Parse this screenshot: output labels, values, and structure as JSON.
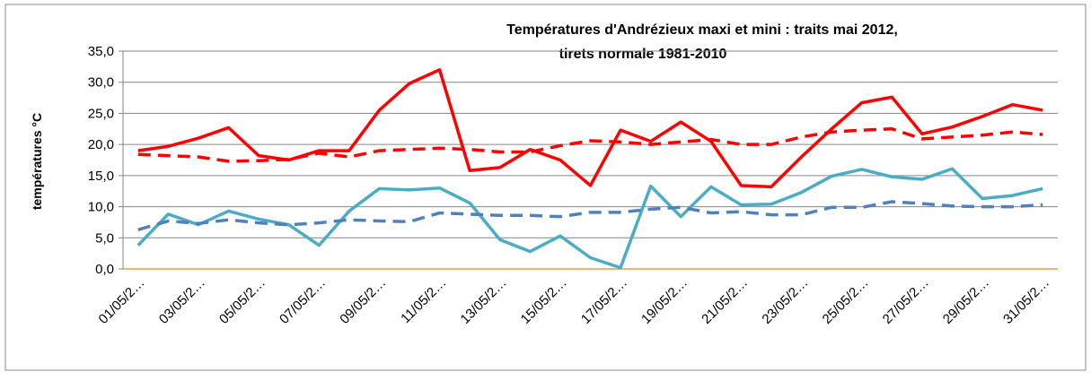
{
  "chart_data": {
    "type": "line",
    "title": [
      "Températures d'Andrézieux  maxi et mini : traits mai 2012,",
      "tirets normale 1981-2010"
    ],
    "y_label": "températures °C",
    "categories": [
      "01/05/2…",
      null,
      "03/05/2…",
      null,
      "05/05/2…",
      null,
      "07/05/2…",
      null,
      "09/05/2…",
      null,
      "11/05/2…",
      null,
      "13/05/2…",
      null,
      "15/05/2…",
      null,
      "17/05/2…",
      null,
      "19/05/2…",
      null,
      "21/05/2…",
      null,
      "23/05/2…",
      null,
      "25/05/2…",
      null,
      "27/05/2…",
      null,
      "29/05/2…",
      null,
      "31/05/2…"
    ],
    "series": [
      {
        "color": "#ff0000",
        "dashed": false,
        "values": [
          19.0,
          19.7,
          21.0,
          22.7,
          18.2,
          17.5,
          19.0,
          19.0,
          25.5,
          29.8,
          32.0,
          15.8,
          16.3,
          19.2,
          17.5,
          13.4,
          22.3,
          20.5,
          23.6,
          20.5,
          13.4,
          13.2,
          18.0,
          22.5,
          26.7,
          27.6,
          21.7,
          22.8,
          24.5,
          26.4,
          25.5
        ]
      },
      {
        "color": "#ff0000",
        "dashed": true,
        "values": [
          18.4,
          18.2,
          18.0,
          17.3,
          17.4,
          17.6,
          18.6,
          18.0,
          19.0,
          19.2,
          19.4,
          19.2,
          18.8,
          18.8,
          19.8,
          20.6,
          20.4,
          20.0,
          20.4,
          20.8,
          20.0,
          20.0,
          21.2,
          22.0,
          22.3,
          22.5,
          20.9,
          21.2,
          21.5,
          22.0,
          21.6
        ]
      },
      {
        "color": "#4bacc6",
        "dashed": false,
        "values": [
          3.8,
          8.8,
          7.1,
          9.3,
          8.0,
          7.1,
          3.8,
          9.3,
          12.9,
          12.7,
          13.0,
          10.6,
          4.7,
          2.8,
          5.3,
          1.8,
          0.2,
          13.3,
          8.4,
          13.2,
          10.3,
          10.4,
          12.3,
          14.9,
          16.0,
          14.8,
          14.4,
          16.1,
          11.3,
          11.8,
          12.9
        ]
      },
      {
        "color": "#4f81bd",
        "dashed": true,
        "values": [
          6.3,
          7.7,
          7.3,
          7.9,
          7.4,
          7.1,
          7.4,
          7.9,
          7.7,
          7.6,
          9.0,
          8.8,
          8.6,
          8.6,
          8.4,
          9.1,
          9.1,
          9.6,
          9.9,
          9.0,
          9.2,
          8.7,
          8.7,
          9.9,
          9.9,
          10.8,
          10.5,
          10.1,
          10.0,
          10.0,
          10.3
        ]
      }
    ],
    "ylim": [
      0,
      35
    ],
    "yticks": [
      {
        "value": 0,
        "label": "0,0"
      },
      {
        "value": 5,
        "label": "5,0"
      },
      {
        "value": 10,
        "label": "10,0"
      },
      {
        "value": 15,
        "label": "15,0"
      },
      {
        "value": 20,
        "label": "20,0"
      },
      {
        "value": 25,
        "label": "25,0"
      },
      {
        "value": 30,
        "label": "30,0"
      },
      {
        "value": 35,
        "label": "35,0"
      }
    ],
    "grid": true
  }
}
